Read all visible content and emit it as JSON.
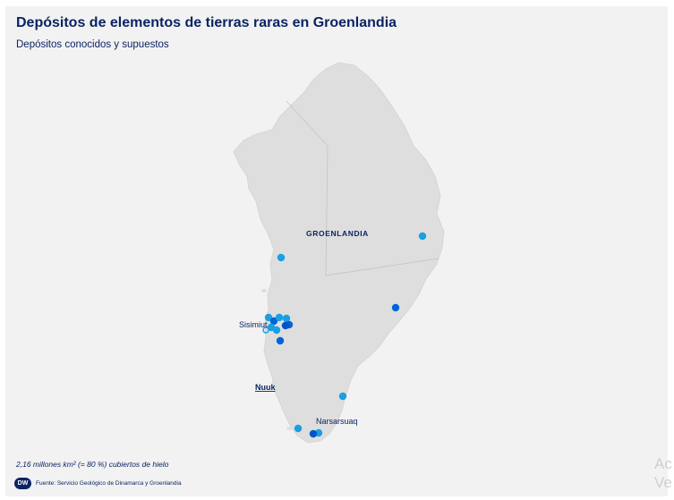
{
  "header": {
    "title": "Depósitos de elementos de tierras raras en Groenlandia",
    "subtitle": "Depósitos conocidos y supuestos"
  },
  "map": {
    "region_label": "GROENLANDIA",
    "places": [
      {
        "name": "Sisimiut"
      },
      {
        "name": "Nuuk"
      },
      {
        "name": "Narsarsuaq"
      }
    ],
    "colors": {
      "land": "#dedede",
      "ocean": "#f3f2f2",
      "known_deposit": "#0063d8",
      "assumed_deposit": "#1a9fe0",
      "text": "#0a2463"
    }
  },
  "footer": {
    "ice_note": "2,16 millones km² (= 80 %) cubiertos de hielo",
    "logo_text": "DW",
    "source": "Fuente: Servicio Geológico de Dinamarca y Groenlandia"
  },
  "watermark": {
    "line1": "Ac",
    "line2": "Ve"
  }
}
